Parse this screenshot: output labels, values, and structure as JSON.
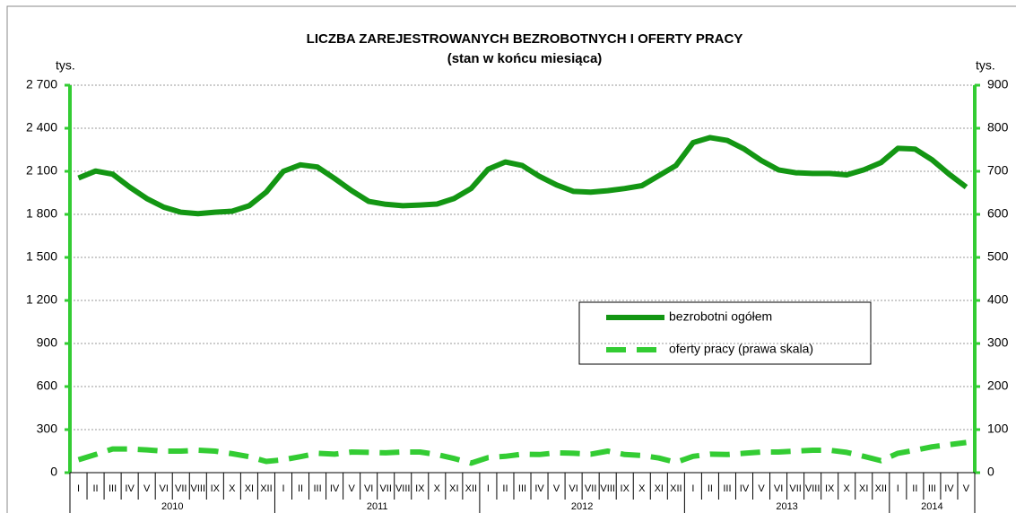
{
  "chart_data": {
    "type": "line",
    "title": "LICZBA ZAREJESTROWANYCH BEZROBOTNYCH I OFERTY PRACY",
    "subtitle": "(stan w końcu miesiąca)",
    "y_label": "tys.",
    "y2_label": "tys.",
    "categories": [
      "I",
      "II",
      "III",
      "IV",
      "V",
      "VI",
      "VII",
      "VIII",
      "IX",
      "X",
      "XI",
      "XII",
      "I",
      "II",
      "III",
      "IV",
      "V",
      "VI",
      "VII",
      "VIII",
      "IX",
      "X",
      "XI",
      "XII",
      "I",
      "II",
      "III",
      "IV",
      "V",
      "VI",
      "VII",
      "VIII",
      "IX",
      "X",
      "XI",
      "XII",
      "I",
      "II",
      "III",
      "IV",
      "V",
      "VI",
      "VII",
      "VIII",
      "IX",
      "X",
      "XI",
      "XII",
      "I",
      "II",
      "III",
      "IV",
      "V"
    ],
    "years": [
      "2010",
      "2011",
      "2012",
      "2013",
      "2014"
    ],
    "series": [
      {
        "name": "bezrobotni ogółem",
        "color": "#139613",
        "dashed": false,
        "values": [
          2053,
          2102,
          2080,
          1990,
          1910,
          1850,
          1815,
          1805,
          1815,
          1822,
          1860,
          1955,
          2100,
          2145,
          2130,
          2050,
          1965,
          1890,
          1870,
          1860,
          1865,
          1872,
          1910,
          1980,
          2115,
          2165,
          2140,
          2065,
          2005,
          1960,
          1955,
          1965,
          1980,
          2000,
          2070,
          2140,
          2300,
          2335,
          2315,
          2255,
          2175,
          2110,
          2090,
          2085,
          2085,
          2075,
          2110,
          2160,
          2260,
          2255,
          2180,
          2080,
          1990
        ]
      },
      {
        "name": "oferty pracy (prawa skala)",
        "color": "#33cc33",
        "dashed": true,
        "axis": "y2",
        "values": [
          30,
          42,
          55,
          55,
          53,
          50,
          50,
          52,
          50,
          44,
          37,
          26,
          30,
          37,
          45,
          43,
          48,
          47,
          46,
          48,
          48,
          42,
          33,
          22,
          35,
          38,
          43,
          42,
          46,
          45,
          43,
          50,
          42,
          40,
          34,
          24,
          38,
          43,
          42,
          45,
          48,
          48,
          50,
          52,
          52,
          47,
          38,
          28,
          45,
          52,
          60,
          65,
          70
        ]
      }
    ],
    "ylim": [
      0,
      2700
    ],
    "yticks": [
      0,
      300,
      600,
      900,
      {
        "value": 1200,
        "label": "1 200"
      },
      {
        "value": 1500,
        "label": "1 500"
      },
      {
        "value": 1800,
        "label": "1 800"
      },
      {
        "value": 2100,
        "label": "2 100"
      },
      {
        "value": 2400,
        "label": "2 400"
      },
      {
        "value": 2700,
        "label": "2 700"
      }
    ],
    "y2lim": [
      0,
      900
    ],
    "y2ticks": [
      0,
      100,
      200,
      300,
      400,
      500,
      600,
      700,
      800,
      900
    ],
    "grid": true,
    "axis_color": "#33cc33"
  }
}
